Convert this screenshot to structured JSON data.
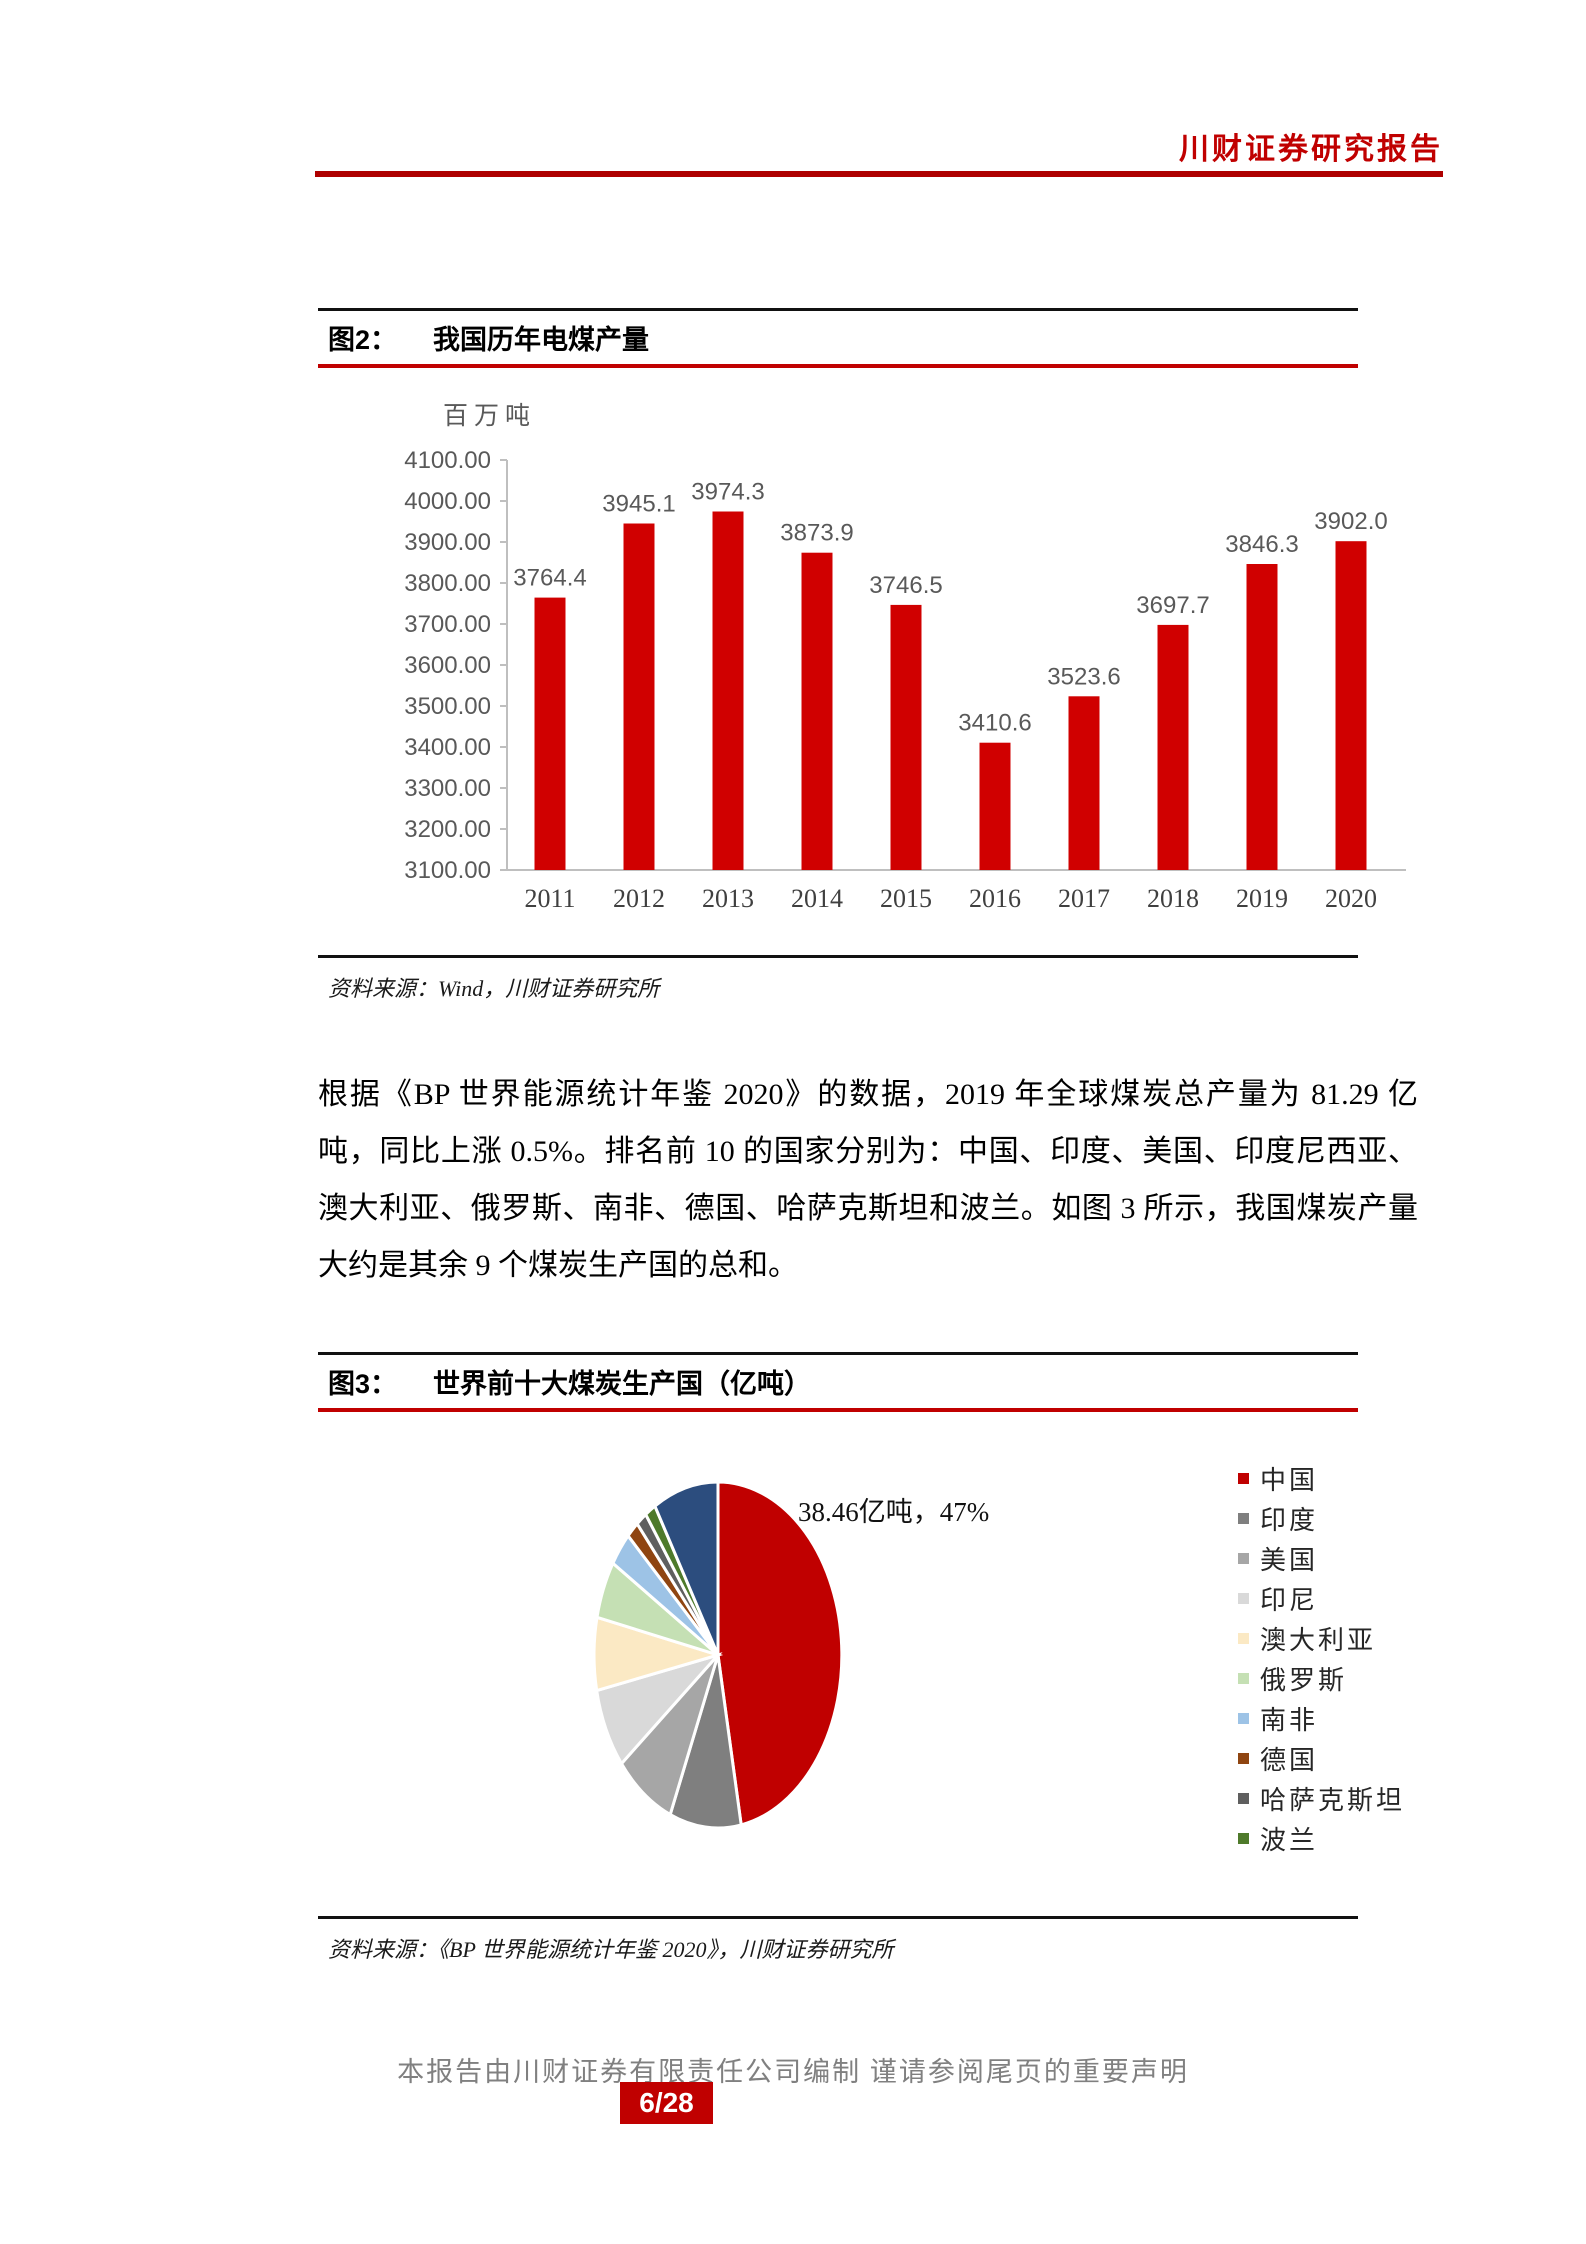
{
  "header": {
    "brand": "川财证券研究报告"
  },
  "figure2": {
    "label": "图2：",
    "title": "我国历年电煤产量",
    "source": "资料来源：Wind，川财证券研究所"
  },
  "paragraph": "根据《BP 世界能源统计年鉴 2020》的数据，2019 年全球煤炭总产量为 81.29 亿吨，同比上涨 0.5%。排名前 10 的国家分别为：中国、印度、美国、印度尼西亚、澳大利亚、俄罗斯、南非、德国、哈萨克斯坦和波兰。如图 3 所示，我国煤炭产量大约是其余 9 个煤炭生产国的总和。",
  "figure3": {
    "label": "图3：",
    "title": "世界前十大煤炭生产国（亿吨）",
    "source": "资料来源：《BP 世界能源统计年鉴 2020》，川财证券研究所"
  },
  "footer": {
    "disclaimer": "本报告由川财证券有限责任公司编制 谨请参阅尾页的重要声明",
    "page_number": "6/28"
  },
  "chart_data": [
    {
      "type": "bar",
      "title": "我国历年电煤产量",
      "unit_label": "百万吨",
      "categories": [
        "2011",
        "2012",
        "2013",
        "2014",
        "2015",
        "2016",
        "2017",
        "2018",
        "2019",
        "2020"
      ],
      "values": [
        3764.4,
        3945.1,
        3974.3,
        3873.9,
        3746.5,
        3410.6,
        3523.6,
        3697.7,
        3846.3,
        3902.0
      ],
      "ylim": [
        3100,
        4100
      ],
      "ytick_step": 100,
      "grid": false,
      "bar_color": "#d00000",
      "label_color": "#595959"
    },
    {
      "type": "pie",
      "title": "世界前十大煤炭生产国（亿吨）",
      "annotation": "38.46亿吨，47%",
      "legend_position": "right",
      "slices": [
        {
          "name": "中国",
          "percent": 47.0,
          "color": "#c00000",
          "in_legend": true
        },
        {
          "name": "印度",
          "percent": 9.3,
          "color": "#7f7f7f",
          "in_legend": true
        },
        {
          "name": "美国",
          "percent": 7.9,
          "color": "#a6a6a6",
          "in_legend": true
        },
        {
          "name": "印尼",
          "percent": 7.5,
          "color": "#d9d9d9",
          "in_legend": true
        },
        {
          "name": "澳大利亚",
          "percent": 6.8,
          "color": "#fbe9c4",
          "in_legend": true
        },
        {
          "name": "俄罗斯",
          "percent": 5.4,
          "color": "#c5e0b4",
          "in_legend": true
        },
        {
          "name": "南非",
          "percent": 3.2,
          "color": "#9dc3e6",
          "in_legend": true
        },
        {
          "name": "德国",
          "percent": 1.6,
          "color": "#8f4511",
          "in_legend": true
        },
        {
          "name": "哈萨克斯坦",
          "percent": 1.4,
          "color": "#5f5f5f",
          "in_legend": true
        },
        {
          "name": "波兰",
          "percent": 1.4,
          "color": "#4e7a2b",
          "in_legend": true
        },
        {
          "name": "",
          "percent": 8.5,
          "color": "#2c4d7e",
          "in_legend": false
        }
      ]
    }
  ]
}
